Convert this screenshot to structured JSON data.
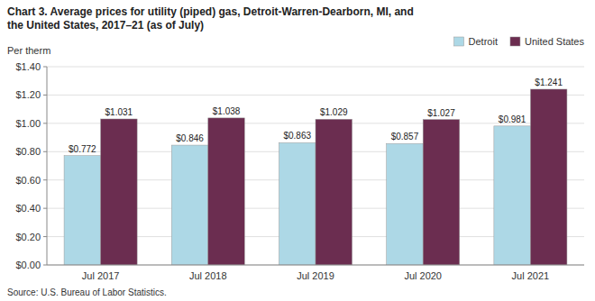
{
  "chart_data": {
    "type": "bar",
    "title": "Chart 3. Average prices for utility (piped) gas, Detroit-Warren-Dearborn, MI, and",
    "subtitle": "the United States, 2017–21 (as of July)",
    "ylabel": "Per therm",
    "source": "Source: U.S. Bureau of Labor Statistics.",
    "categories": [
      "Jul 2017",
      "Jul 2018",
      "Jul 2019",
      "Jul 2020",
      "Jul 2021"
    ],
    "series": [
      {
        "name": "Detroit",
        "color": "#add8e6",
        "values": [
          0.772,
          0.846,
          0.863,
          0.857,
          0.981
        ],
        "value_labels": [
          "$0.772",
          "$0.846",
          "$0.863",
          "$0.857",
          "$0.981"
        ]
      },
      {
        "name": "United States",
        "color": "#6b2d50",
        "values": [
          1.031,
          1.038,
          1.029,
          1.027,
          1.241
        ],
        "value_labels": [
          "$1.031",
          "$1.038",
          "$1.029",
          "$1.027",
          "$1.241"
        ]
      }
    ],
    "ylim": [
      0.0,
      1.4
    ],
    "yticks": [
      {
        "value": 0.0,
        "label": "$0.00"
      },
      {
        "value": 0.2,
        "label": "$0.20"
      },
      {
        "value": 0.4,
        "label": "$0.40"
      },
      {
        "value": 0.6,
        "label": "$0.60"
      },
      {
        "value": 0.8,
        "label": "$0.80"
      },
      {
        "value": 1.0,
        "label": "$1.00"
      },
      {
        "value": 1.2,
        "label": "$1.20"
      },
      {
        "value": 1.4,
        "label": "$1.40"
      }
    ],
    "grid": true,
    "legend": "top-right",
    "data_labels": true
  }
}
